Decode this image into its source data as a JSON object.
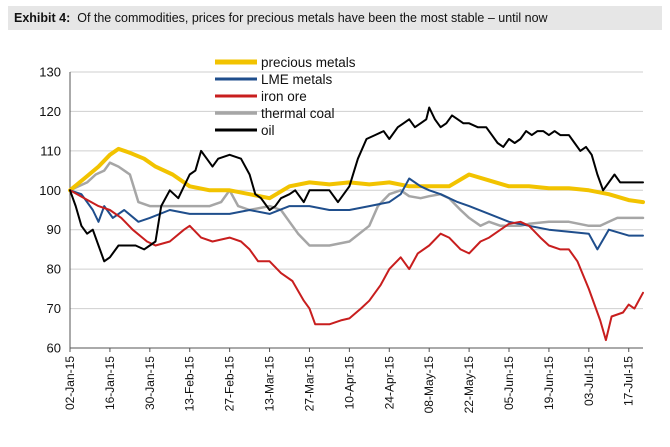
{
  "header": {
    "label": "Exhibit 4:",
    "text": "Of the commodities, prices for precious metals have been the most stable – until now"
  },
  "chart_data": {
    "type": "line",
    "title": "",
    "xlabel": "",
    "ylabel": "",
    "ylim": [
      60,
      130
    ],
    "yticks": [
      60,
      70,
      80,
      90,
      100,
      110,
      120,
      130
    ],
    "grid": "horizontal",
    "legend_position": "top-center",
    "x_tick_labels": [
      "02-Jan-15",
      "16-Jan-15",
      "30-Jan-15",
      "13-Feb-15",
      "27-Feb-15",
      "13-Mar-15",
      "27-Mar-15",
      "10-Apr-15",
      "24-Apr-15",
      "08-May-15",
      "22-May-15",
      "05-Jun-15",
      "19-Jun-15",
      "03-Jul-15",
      "17-Jul-15"
    ],
    "x_tick_days": [
      0,
      14,
      28,
      42,
      56,
      70,
      84,
      98,
      112,
      126,
      140,
      154,
      168,
      182,
      196
    ],
    "x_domain_days": [
      0,
      201
    ],
    "series": [
      {
        "name": "precious metals",
        "color": "#f2c300",
        "width": 4,
        "points": [
          [
            0,
            100
          ],
          [
            5,
            103
          ],
          [
            10,
            106
          ],
          [
            14,
            109
          ],
          [
            17,
            110.5
          ],
          [
            21,
            109.5
          ],
          [
            26,
            108
          ],
          [
            30,
            106
          ],
          [
            36,
            104
          ],
          [
            42,
            101
          ],
          [
            49,
            100
          ],
          [
            56,
            100
          ],
          [
            63,
            99
          ],
          [
            70,
            98
          ],
          [
            77,
            101
          ],
          [
            84,
            102
          ],
          [
            91,
            101.5
          ],
          [
            98,
            102
          ],
          [
            105,
            101.5
          ],
          [
            112,
            102
          ],
          [
            119,
            101
          ],
          [
            126,
            101
          ],
          [
            133,
            101
          ],
          [
            140,
            104
          ],
          [
            147,
            102.5
          ],
          [
            154,
            101
          ],
          [
            161,
            101
          ],
          [
            168,
            100.5
          ],
          [
            175,
            100.5
          ],
          [
            182,
            100
          ],
          [
            189,
            99
          ],
          [
            196,
            97.5
          ],
          [
            201,
            97
          ]
        ]
      },
      {
        "name": "LME metals",
        "color": "#1f4e8c",
        "width": 2,
        "points": [
          [
            0,
            100
          ],
          [
            4,
            99
          ],
          [
            8,
            95
          ],
          [
            10,
            92
          ],
          [
            12,
            96
          ],
          [
            15,
            93
          ],
          [
            19,
            95
          ],
          [
            24,
            92
          ],
          [
            28,
            93
          ],
          [
            35,
            95
          ],
          [
            42,
            94
          ],
          [
            49,
            94
          ],
          [
            56,
            94
          ],
          [
            63,
            95
          ],
          [
            70,
            94
          ],
          [
            77,
            96
          ],
          [
            84,
            96
          ],
          [
            91,
            95
          ],
          [
            98,
            95
          ],
          [
            105,
            96
          ],
          [
            112,
            97
          ],
          [
            116,
            99
          ],
          [
            119,
            103
          ],
          [
            123,
            101
          ],
          [
            126,
            100
          ],
          [
            130,
            99
          ],
          [
            136,
            97
          ],
          [
            140,
            96
          ],
          [
            147,
            94
          ],
          [
            154,
            92
          ],
          [
            161,
            91
          ],
          [
            168,
            90
          ],
          [
            175,
            89.5
          ],
          [
            182,
            89
          ],
          [
            185,
            85
          ],
          [
            189,
            90
          ],
          [
            196,
            88.5
          ],
          [
            201,
            88.5
          ]
        ]
      },
      {
        "name": "iron ore",
        "color": "#c81e1e",
        "width": 2,
        "points": [
          [
            0,
            100
          ],
          [
            5,
            98
          ],
          [
            10,
            96
          ],
          [
            14,
            95
          ],
          [
            18,
            93
          ],
          [
            22,
            90
          ],
          [
            27,
            87
          ],
          [
            30,
            86
          ],
          [
            35,
            87
          ],
          [
            40,
            90
          ],
          [
            42,
            91
          ],
          [
            46,
            88
          ],
          [
            50,
            87
          ],
          [
            56,
            88
          ],
          [
            60,
            87
          ],
          [
            63,
            85
          ],
          [
            66,
            82
          ],
          [
            70,
            82
          ],
          [
            74,
            79
          ],
          [
            78,
            77
          ],
          [
            82,
            72
          ],
          [
            84,
            70
          ],
          [
            86,
            66
          ],
          [
            91,
            66
          ],
          [
            95,
            67
          ],
          [
            98,
            67.5
          ],
          [
            102,
            70
          ],
          [
            105,
            72
          ],
          [
            109,
            76
          ],
          [
            112,
            80
          ],
          [
            116,
            83
          ],
          [
            119,
            80
          ],
          [
            122,
            84
          ],
          [
            126,
            86
          ],
          [
            130,
            89
          ],
          [
            133,
            88
          ],
          [
            137,
            85
          ],
          [
            140,
            84
          ],
          [
            144,
            87
          ],
          [
            147,
            88
          ],
          [
            151,
            90
          ],
          [
            154,
            91.5
          ],
          [
            158,
            92
          ],
          [
            161,
            91
          ],
          [
            165,
            88
          ],
          [
            168,
            86
          ],
          [
            172,
            85
          ],
          [
            175,
            85
          ],
          [
            178,
            82
          ],
          [
            182,
            75
          ],
          [
            186,
            67
          ],
          [
            188,
            62
          ],
          [
            190,
            68
          ],
          [
            194,
            69
          ],
          [
            196,
            71
          ],
          [
            198,
            70
          ],
          [
            201,
            74
          ]
        ]
      },
      {
        "name": "thermal coal",
        "color": "#a6a6a6",
        "width": 2.5,
        "points": [
          [
            0,
            100
          ],
          [
            6,
            102
          ],
          [
            9,
            104
          ],
          [
            12,
            105
          ],
          [
            14,
            107
          ],
          [
            17,
            106
          ],
          [
            21,
            104
          ],
          [
            24,
            97
          ],
          [
            28,
            96
          ],
          [
            35,
            96
          ],
          [
            42,
            96
          ],
          [
            49,
            96
          ],
          [
            53,
            97
          ],
          [
            56,
            100
          ],
          [
            59,
            96
          ],
          [
            63,
            95
          ],
          [
            70,
            96
          ],
          [
            74,
            95
          ],
          [
            77,
            92
          ],
          [
            80,
            89
          ],
          [
            84,
            86
          ],
          [
            88,
            86
          ],
          [
            91,
            86
          ],
          [
            98,
            87
          ],
          [
            105,
            91
          ],
          [
            108,
            96
          ],
          [
            112,
            99
          ],
          [
            116,
            100
          ],
          [
            119,
            98.5
          ],
          [
            123,
            98
          ],
          [
            126,
            98.5
          ],
          [
            130,
            99
          ],
          [
            133,
            98
          ],
          [
            137,
            95
          ],
          [
            140,
            93
          ],
          [
            144,
            91
          ],
          [
            147,
            92
          ],
          [
            151,
            91
          ],
          [
            154,
            91
          ],
          [
            158,
            91
          ],
          [
            161,
            91.5
          ],
          [
            168,
            92
          ],
          [
            175,
            92
          ],
          [
            182,
            91
          ],
          [
            186,
            91
          ],
          [
            189,
            92
          ],
          [
            192,
            93
          ],
          [
            196,
            93
          ],
          [
            201,
            93
          ]
        ]
      },
      {
        "name": "oil",
        "color": "#000000",
        "width": 2,
        "points": [
          [
            0,
            100
          ],
          [
            2,
            96
          ],
          [
            4,
            91
          ],
          [
            6,
            89
          ],
          [
            8,
            90
          ],
          [
            10,
            86
          ],
          [
            12,
            82
          ],
          [
            14,
            83
          ],
          [
            17,
            86
          ],
          [
            20,
            86
          ],
          [
            23,
            86
          ],
          [
            26,
            85
          ],
          [
            28,
            86
          ],
          [
            30,
            87
          ],
          [
            32,
            96
          ],
          [
            35,
            100
          ],
          [
            38,
            98
          ],
          [
            40,
            101
          ],
          [
            42,
            104
          ],
          [
            44,
            105
          ],
          [
            46,
            110
          ],
          [
            48,
            108
          ],
          [
            50,
            106
          ],
          [
            52,
            108
          ],
          [
            56,
            109
          ],
          [
            60,
            108
          ],
          [
            63,
            104
          ],
          [
            65,
            99
          ],
          [
            67,
            98
          ],
          [
            70,
            95
          ],
          [
            72,
            96
          ],
          [
            74,
            98
          ],
          [
            77,
            99
          ],
          [
            79,
            100
          ],
          [
            82,
            97
          ],
          [
            84,
            100
          ],
          [
            88,
            100
          ],
          [
            91,
            100
          ],
          [
            94,
            97
          ],
          [
            96,
            99
          ],
          [
            98,
            101
          ],
          [
            101,
            108
          ],
          [
            104,
            113
          ],
          [
            107,
            114
          ],
          [
            110,
            115
          ],
          [
            112,
            113
          ],
          [
            115,
            116
          ],
          [
            117,
            117
          ],
          [
            119,
            118
          ],
          [
            121,
            116
          ],
          [
            123,
            117
          ],
          [
            125,
            118
          ],
          [
            126,
            121
          ],
          [
            128,
            118
          ],
          [
            130,
            116
          ],
          [
            132,
            117
          ],
          [
            134,
            119
          ],
          [
            136,
            118
          ],
          [
            138,
            117
          ],
          [
            140,
            117
          ],
          [
            143,
            116
          ],
          [
            146,
            116
          ],
          [
            148,
            114
          ],
          [
            150,
            112
          ],
          [
            152,
            111
          ],
          [
            154,
            113
          ],
          [
            156,
            112
          ],
          [
            158,
            113
          ],
          [
            160,
            115
          ],
          [
            162,
            114
          ],
          [
            164,
            115
          ],
          [
            166,
            115
          ],
          [
            168,
            114
          ],
          [
            170,
            115
          ],
          [
            172,
            114
          ],
          [
            175,
            114
          ],
          [
            177,
            112
          ],
          [
            179,
            110
          ],
          [
            181,
            111
          ],
          [
            183,
            109
          ],
          [
            185,
            104
          ],
          [
            187,
            100
          ],
          [
            189,
            102
          ],
          [
            191,
            104
          ],
          [
            193,
            102
          ],
          [
            196,
            102
          ],
          [
            201,
            102
          ]
        ]
      }
    ]
  }
}
